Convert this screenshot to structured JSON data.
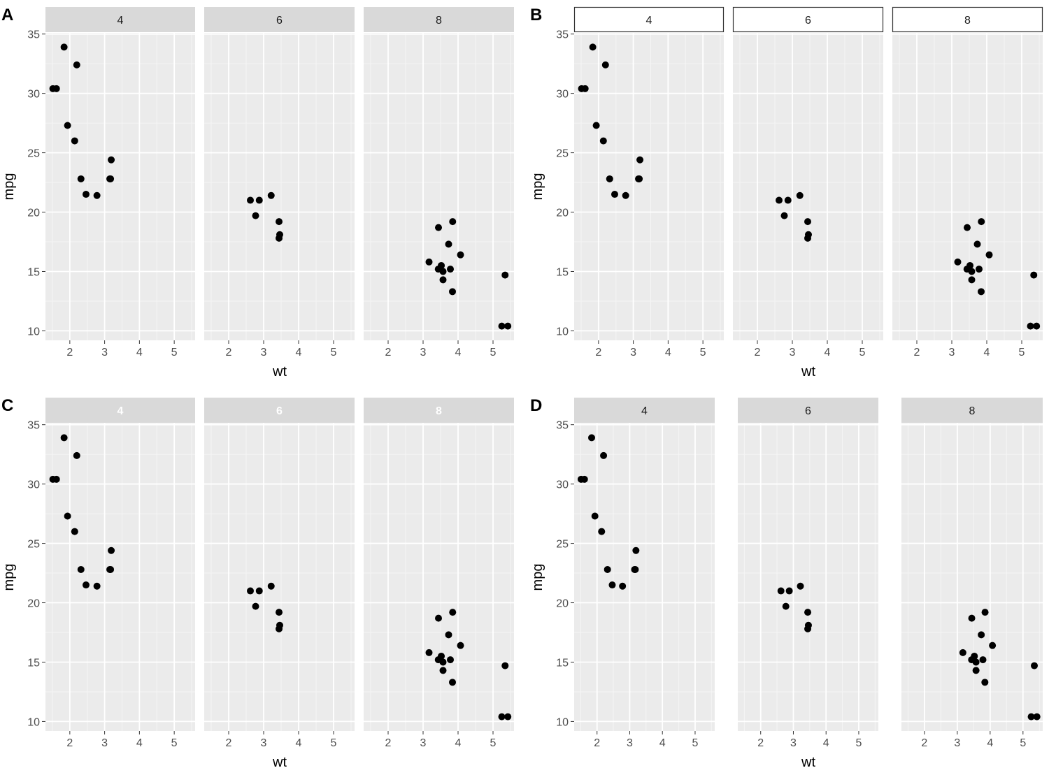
{
  "chart_data": [
    {
      "panel_letter": "A",
      "type": "scatter",
      "facet_variable": "cyl",
      "facets": [
        {
          "label": "4",
          "x": [
            2.32,
            3.19,
            3.15,
            2.2,
            1.615,
            1.835,
            2.465,
            1.935,
            2.14,
            1.513,
            3.17,
            2.78
          ],
          "y": [
            22.8,
            24.4,
            22.8,
            32.4,
            30.4,
            33.9,
            21.5,
            27.3,
            26.0,
            30.4,
            22.8,
            21.4
          ]
        },
        {
          "label": "6",
          "x": [
            2.62,
            2.875,
            3.215,
            3.46,
            3.44,
            3.44,
            2.77
          ],
          "y": [
            21.0,
            21.0,
            21.4,
            18.1,
            19.2,
            17.8,
            19.7
          ]
        },
        {
          "label": "8",
          "x": [
            3.44,
            3.57,
            4.07,
            3.73,
            3.78,
            5.25,
            5.424,
            5.345,
            3.52,
            3.435,
            3.84,
            3.845,
            3.17,
            3.57
          ],
          "y": [
            18.7,
            14.3,
            16.4,
            17.3,
            15.2,
            10.4,
            10.4,
            14.7,
            15.5,
            15.2,
            13.3,
            19.2,
            15.8,
            15.0
          ]
        }
      ],
      "xlabel": "wt",
      "ylabel": "mpg",
      "xticks": [
        "2",
        "3",
        "4",
        "5"
      ],
      "yticks": [
        "10",
        "15",
        "20",
        "25",
        "30",
        "35"
      ],
      "xlim": [
        1.3,
        5.6
      ],
      "ylim": [
        9.2,
        35.1
      ],
      "strip_style": "grey",
      "strip_text_color": "#1a1a1a",
      "free_x": false
    },
    {
      "panel_letter": "B",
      "type": "scatter",
      "facet_variable": "cyl",
      "facets": [
        {
          "label": "4",
          "x": [
            2.32,
            3.19,
            3.15,
            2.2,
            1.615,
            1.835,
            2.465,
            1.935,
            2.14,
            1.513,
            3.17,
            2.78
          ],
          "y": [
            22.8,
            24.4,
            22.8,
            32.4,
            30.4,
            33.9,
            21.5,
            27.3,
            26.0,
            30.4,
            22.8,
            21.4
          ]
        },
        {
          "label": "6",
          "x": [
            2.62,
            2.875,
            3.215,
            3.46,
            3.44,
            3.44,
            2.77
          ],
          "y": [
            21.0,
            21.0,
            21.4,
            18.1,
            19.2,
            17.8,
            19.7
          ]
        },
        {
          "label": "8",
          "x": [
            3.44,
            3.57,
            4.07,
            3.73,
            3.78,
            5.25,
            5.424,
            5.345,
            3.52,
            3.435,
            3.84,
            3.845,
            3.17,
            3.57
          ],
          "y": [
            18.7,
            14.3,
            16.4,
            17.3,
            15.2,
            10.4,
            10.4,
            14.7,
            15.5,
            15.2,
            13.3,
            19.2,
            15.8,
            15.0
          ]
        }
      ],
      "xlabel": "wt",
      "ylabel": "mpg",
      "xticks": [
        "2",
        "3",
        "4",
        "5"
      ],
      "yticks": [
        "10",
        "15",
        "20",
        "25",
        "30",
        "35"
      ],
      "xlim": [
        1.3,
        5.6
      ],
      "ylim": [
        9.2,
        35.1
      ],
      "strip_style": "outlined",
      "strip_text_color": "#1a1a1a",
      "free_x": false
    },
    {
      "panel_letter": "C",
      "type": "scatter",
      "facet_variable": "cyl",
      "facets": [
        {
          "label": "4",
          "x": [
            2.32,
            3.19,
            3.15,
            2.2,
            1.615,
            1.835,
            2.465,
            1.935,
            2.14,
            1.513,
            3.17,
            2.78
          ],
          "y": [
            22.8,
            24.4,
            22.8,
            32.4,
            30.4,
            33.9,
            21.5,
            27.3,
            26.0,
            30.4,
            22.8,
            21.4
          ]
        },
        {
          "label": "6",
          "x": [
            2.62,
            2.875,
            3.215,
            3.46,
            3.44,
            3.44,
            2.77
          ],
          "y": [
            21.0,
            21.0,
            21.4,
            18.1,
            19.2,
            17.8,
            19.7
          ]
        },
        {
          "label": "8",
          "x": [
            3.44,
            3.57,
            4.07,
            3.73,
            3.78,
            5.25,
            5.424,
            5.345,
            3.52,
            3.435,
            3.84,
            3.845,
            3.17,
            3.57
          ],
          "y": [
            18.7,
            14.3,
            16.4,
            17.3,
            15.2,
            10.4,
            10.4,
            14.7,
            15.5,
            15.2,
            13.3,
            19.2,
            15.8,
            15.0
          ]
        }
      ],
      "xlabel": "wt",
      "ylabel": "mpg",
      "xticks": [
        "2",
        "3",
        "4",
        "5"
      ],
      "yticks": [
        "10",
        "15",
        "20",
        "25",
        "30",
        "35"
      ],
      "xlim": [
        1.3,
        5.6
      ],
      "ylim": [
        9.2,
        35.1
      ],
      "strip_style": "grey",
      "strip_text_color": "#ffffff",
      "strip_text_bold": true,
      "free_x": false
    },
    {
      "panel_letter": "D",
      "type": "scatter",
      "facet_variable": "cyl",
      "facets": [
        {
          "label": "4",
          "x": [
            2.32,
            3.19,
            3.15,
            2.2,
            1.615,
            1.835,
            2.465,
            1.935,
            2.14,
            1.513,
            3.17,
            2.78
          ],
          "y": [
            22.8,
            24.4,
            22.8,
            32.4,
            30.4,
            33.9,
            21.5,
            27.3,
            26.0,
            30.4,
            22.8,
            21.4
          ]
        },
        {
          "label": "6",
          "x": [
            2.62,
            2.875,
            3.215,
            3.46,
            3.44,
            3.44,
            2.77
          ],
          "y": [
            21.0,
            21.0,
            21.4,
            18.1,
            19.2,
            17.8,
            19.7
          ]
        },
        {
          "label": "8",
          "x": [
            3.44,
            3.57,
            4.07,
            3.73,
            3.78,
            5.25,
            5.424,
            5.345,
            3.52,
            3.435,
            3.84,
            3.845,
            3.17,
            3.57
          ],
          "y": [
            18.7,
            14.3,
            16.4,
            17.3,
            15.2,
            10.4,
            10.4,
            14.7,
            15.5,
            15.2,
            13.3,
            19.2,
            15.8,
            15.0
          ]
        }
      ],
      "xlabel": "wt",
      "ylabel": "mpg",
      "xticks": [
        "2",
        "3",
        "4",
        "5"
      ],
      "yticks": [
        "10",
        "15",
        "20",
        "25",
        "30",
        "35"
      ],
      "xlim": [
        1.3,
        5.6
      ],
      "ylim": [
        9.2,
        35.1
      ],
      "strip_style": "grey",
      "strip_text_color": "#1a1a1a",
      "free_x": false,
      "wide_facet_spacing": true
    }
  ],
  "colors": {
    "panel_background": "#ebebeb",
    "grid_major": "#ffffff",
    "grid_minor": "#f5f5f5",
    "strip_grey": "#d9d9d9",
    "strip_outline": "#333333",
    "point": "#000000",
    "tick_label": "#4d4d4d",
    "title": "#000000"
  }
}
